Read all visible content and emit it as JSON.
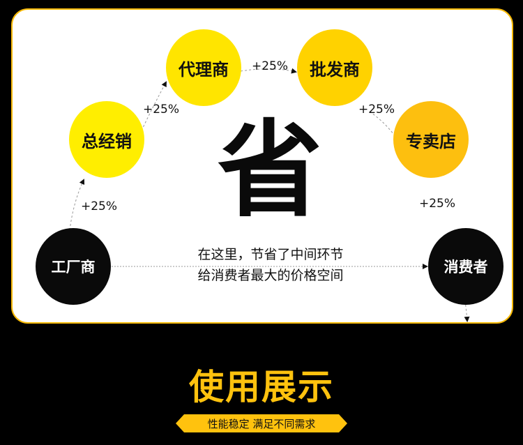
{
  "nodes": {
    "factory": "工厂商",
    "distributor": "总经销",
    "agent": "代理商",
    "wholesaler": "批发商",
    "store": "专卖店",
    "consumer": "消费者"
  },
  "markup_labels": [
    "+25%",
    "+25%",
    "+25%",
    "+25%",
    "+25%"
  ],
  "center_char": "省",
  "caption": {
    "line1": "在这里，节省了中间环节",
    "line2": "给消费者最大的价格空间"
  },
  "footer": {
    "title": "使用展示",
    "subtitle": "性能稳定 满足不同需求"
  },
  "colors": {
    "accent": "#ffc20e",
    "node_yellow": "#ffe600",
    "node_orange": "#fdbf0f",
    "node_black": "#0a0a0a"
  }
}
